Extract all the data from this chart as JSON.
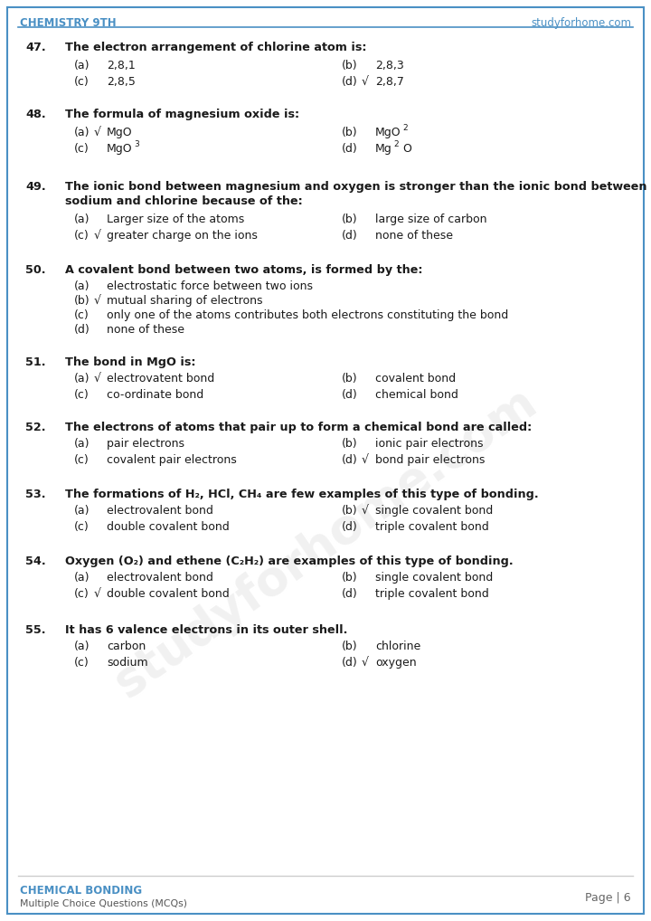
{
  "header_left": "CHEMISTRY 9TH",
  "header_right": "studyforhome.com",
  "header_color": "#4a90c4",
  "footer_left_title": "CHEMICAL BONDING",
  "footer_left_sub": "Multiple Choice Questions (MCQs)",
  "footer_right": "Page | 6",
  "footer_title_color": "#4a90c4",
  "footer_sub_color": "#555555",
  "bg_color": "#ffffff",
  "text_color": "#1a1a1a",
  "border_color": "#4a90c4"
}
